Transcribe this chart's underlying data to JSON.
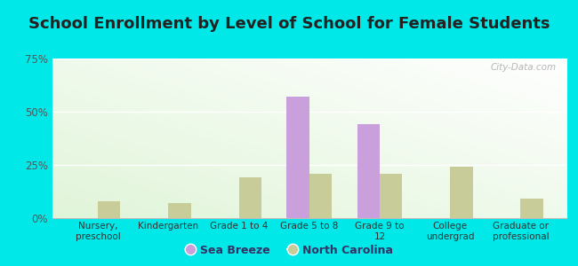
{
  "title": "School Enrollment by Level of School for Female Students",
  "categories": [
    "Nursery,\npreschool",
    "Kindergarten",
    "Grade 1 to 4",
    "Grade 5 to 8",
    "Grade 9 to\n12",
    "College\nundergrad",
    "Graduate or\nprofessional"
  ],
  "sea_breeze": [
    0,
    0,
    0,
    57,
    44,
    0,
    0
  ],
  "north_carolina": [
    8,
    7,
    19,
    21,
    21,
    24,
    9
  ],
  "sea_breeze_color": "#c9a0dc",
  "north_carolina_color": "#c8cc99",
  "ylim": [
    0,
    75
  ],
  "yticks": [
    0,
    25,
    50,
    75
  ],
  "ytick_labels": [
    "0%",
    "25%",
    "50%",
    "75%"
  ],
  "background_outer": "#00e8e8",
  "title_fontsize": 13,
  "legend_labels": [
    "Sea Breeze",
    "North Carolina"
  ],
  "watermark": "City-Data.com",
  "bar_width": 0.32
}
